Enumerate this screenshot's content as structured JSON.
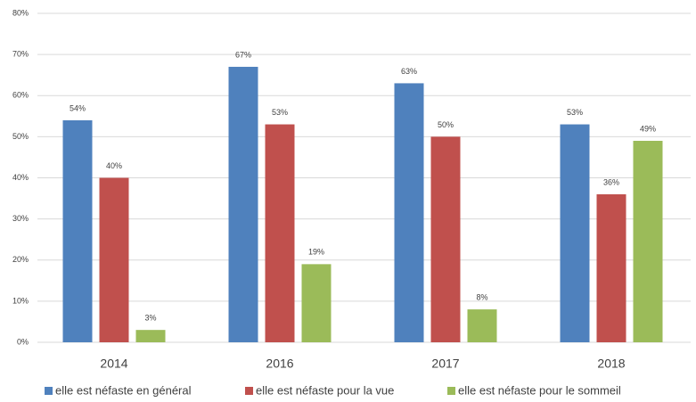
{
  "chart_data": {
    "type": "bar",
    "categories": [
      "2014",
      "2016",
      "2017",
      "2018"
    ],
    "series": [
      {
        "name": "elle est néfaste en général",
        "color": "#4f81bd",
        "values": [
          54,
          67,
          63,
          53
        ],
        "value_labels": [
          "54%",
          "67%",
          "63%",
          "53%"
        ]
      },
      {
        "name": "elle est néfaste pour la vue",
        "color": "#c0504d",
        "values": [
          40,
          53,
          50,
          36
        ],
        "value_labels": [
          "40%",
          "53%",
          "50%",
          "36%"
        ]
      },
      {
        "name": "elle est néfaste pour le sommeil",
        "color": "#9bbb59",
        "values": [
          3,
          19,
          8,
          49
        ],
        "value_labels": [
          "3%",
          "19%",
          "8%",
          "49%"
        ]
      }
    ],
    "ylim": [
      0,
      80
    ],
    "yticks": [
      {
        "value": 0,
        "label": "0%"
      },
      {
        "value": 10,
        "label": "10%"
      },
      {
        "value": 20,
        "label": "20%"
      },
      {
        "value": 30,
        "label": "30%"
      },
      {
        "value": 40,
        "label": "40%"
      },
      {
        "value": 50,
        "label": "50%"
      },
      {
        "value": 60,
        "label": "60%"
      },
      {
        "value": 70,
        "label": "70%"
      },
      {
        "value": 80,
        "label": "80%"
      }
    ],
    "grid": true,
    "legend": "bottom"
  }
}
